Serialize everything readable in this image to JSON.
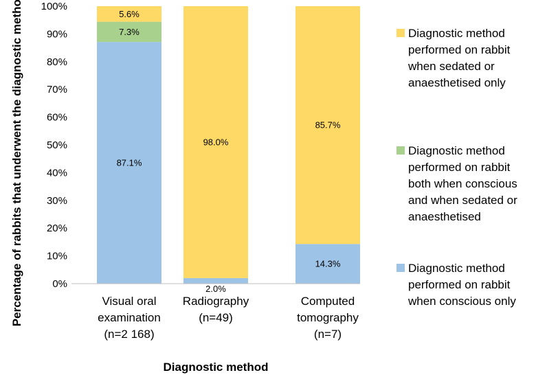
{
  "chart_data": {
    "type": "bar",
    "stacked": true,
    "xlabel": "Diagnostic method",
    "ylabel": "Percentage of rabbits that underwent the diagnostic method",
    "ylim": [
      0,
      100
    ],
    "yticks": [
      "0%",
      "10%",
      "20%",
      "30%",
      "40%",
      "50%",
      "60%",
      "70%",
      "80%",
      "90%",
      "100%"
    ],
    "categories": [
      [
        "Visual oral",
        "examination",
        "(n=2 168)"
      ],
      [
        "Radiography",
        "(n=49)"
      ],
      [
        "Computed",
        "tomography",
        "(n=7)"
      ]
    ],
    "series": [
      {
        "name": "Diagnostic method performed on rabbit when conscious only",
        "legend_lines": [
          "Diagnostic method",
          "performed on rabbit",
          "when conscious only"
        ],
        "color": "#9DC3E6",
        "values": [
          87.1,
          2.0,
          14.3
        ],
        "labels": [
          "87.1%",
          "2.0%",
          "14.3%"
        ]
      },
      {
        "name": "Diagnostic method performed on rabbit both when conscious and when sedated or anaesthetised",
        "legend_lines": [
          "Diagnostic method",
          "performed on rabbit",
          "both when conscious",
          "and when sedated or",
          "anaesthetised"
        ],
        "color": "#A9D18E",
        "values": [
          7.3,
          0,
          0
        ],
        "labels": [
          "7.3%",
          "",
          ""
        ]
      },
      {
        "name": "Diagnostic method performed on rabbit when sedated or anaesthetised only",
        "legend_lines": [
          "Diagnostic method",
          "performed on rabbit",
          "when sedated or",
          "anaesthetised only"
        ],
        "color": "#FFD966",
        "values": [
          5.6,
          98.0,
          85.7
        ],
        "labels": [
          "5.6%",
          "98.0%",
          "85.7%"
        ]
      }
    ],
    "legend_order": [
      2,
      1,
      0
    ],
    "legend_position": "right",
    "grid": false
  }
}
